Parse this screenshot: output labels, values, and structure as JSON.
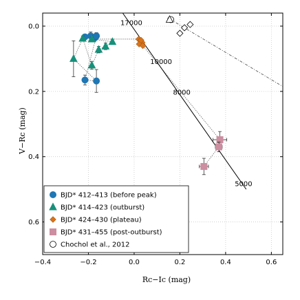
{
  "chart_data": {
    "type": "scatter",
    "xlabel": "Rc−Ic (mag)",
    "ylabel": "V−Rc (mag)",
    "xlim": [
      -0.4,
      0.65
    ],
    "ylim": [
      0.7,
      -0.04
    ],
    "y_inverted": true,
    "xticks": [
      -0.4,
      -0.2,
      0.0,
      0.2,
      0.4,
      0.6
    ],
    "xtick_labels": [
      "−0.4",
      "−0.2",
      "0.0",
      "0.2",
      "0.4",
      "0.6"
    ],
    "yticks": [
      0.0,
      0.2,
      0.4,
      0.6
    ],
    "ytick_labels": [
      "0.0",
      "0.2",
      "0.4",
      "0.6"
    ],
    "grid": true,
    "legend_position": "lower-left",
    "series": [
      {
        "name": "BJD* 412–413 (before peak)",
        "marker": "circle",
        "color": "#1f77b4",
        "points": [
          {
            "x": -0.215,
            "y": 0.033
          },
          {
            "x": -0.19,
            "y": 0.03
          },
          {
            "x": -0.175,
            "y": 0.038
          },
          {
            "x": -0.165,
            "y": 0.03
          },
          {
            "x": -0.215,
            "y": 0.165
          },
          {
            "x": -0.165,
            "y": 0.168
          }
        ],
        "yerr": [
          0.008,
          0.012,
          0.01,
          0.01,
          0.015,
          0.035
        ]
      },
      {
        "name": "BJD* 414–423 (outburst)",
        "marker": "triangle",
        "color": "#17907a",
        "points": [
          {
            "x": -0.265,
            "y": 0.1
          },
          {
            "x": -0.225,
            "y": 0.038
          },
          {
            "x": -0.185,
            "y": 0.12
          },
          {
            "x": -0.155,
            "y": 0.072
          },
          {
            "x": -0.125,
            "y": 0.062
          },
          {
            "x": -0.095,
            "y": 0.048
          },
          {
            "x": -0.185,
            "y": 0.04
          }
        ],
        "yerr": [
          0.055,
          0.008,
          0.012,
          0.01,
          0.01,
          0.008,
          0.006
        ]
      },
      {
        "name": "BJD* 424–430 (plateau)",
        "marker": "diamond",
        "color": "#d9731a",
        "points": [
          {
            "x": 0.02,
            "y": 0.04
          },
          {
            "x": 0.028,
            "y": 0.045
          },
          {
            "x": 0.035,
            "y": 0.05
          },
          {
            "x": 0.022,
            "y": 0.055
          },
          {
            "x": 0.03,
            "y": 0.043
          },
          {
            "x": 0.038,
            "y": 0.06
          }
        ]
      },
      {
        "name": "BJD* 431–455 (post-outburst)",
        "marker": "square",
        "color": "#cc8ea0",
        "points": [
          {
            "x": 0.375,
            "y": 0.348
          },
          {
            "x": 0.37,
            "y": 0.37
          },
          {
            "x": 0.305,
            "y": 0.43
          }
        ],
        "yerr": [
          0.025,
          0.015,
          0.025
        ],
        "xerr": [
          0.03,
          0.015,
          0.02
        ]
      },
      {
        "name": "Chochol et al., 2012",
        "marker": "open-circle",
        "color": "#000000",
        "points": [
          {
            "x": 0.16,
            "y": -0.02
          },
          {
            "x": 0.2,
            "y": 0.022
          },
          {
            "x": 0.22,
            "y": 0.005
          },
          {
            "x": 0.245,
            "y": -0.005
          }
        ]
      }
    ],
    "reference_line": {
      "points": [
        {
          "x": -0.05,
          "y": -0.04
        },
        {
          "x": 0.49,
          "y": 0.5
        }
      ],
      "labels": [
        {
          "text": "17000",
          "x": -0.06,
          "y": -0.003
        },
        {
          "text": "10000",
          "x": 0.07,
          "y": 0.116
        },
        {
          "text": "8000",
          "x": 0.17,
          "y": 0.21
        },
        {
          "text": "5000",
          "x": 0.44,
          "y": 0.49
        }
      ]
    },
    "chochol_track": {
      "points": [
        {
          "x": 0.16,
          "y": -0.02
        },
        {
          "x": 0.65,
          "y": 0.185
        }
      ]
    },
    "open_triangle": {
      "x": 0.155,
      "y": -0.02
    }
  }
}
